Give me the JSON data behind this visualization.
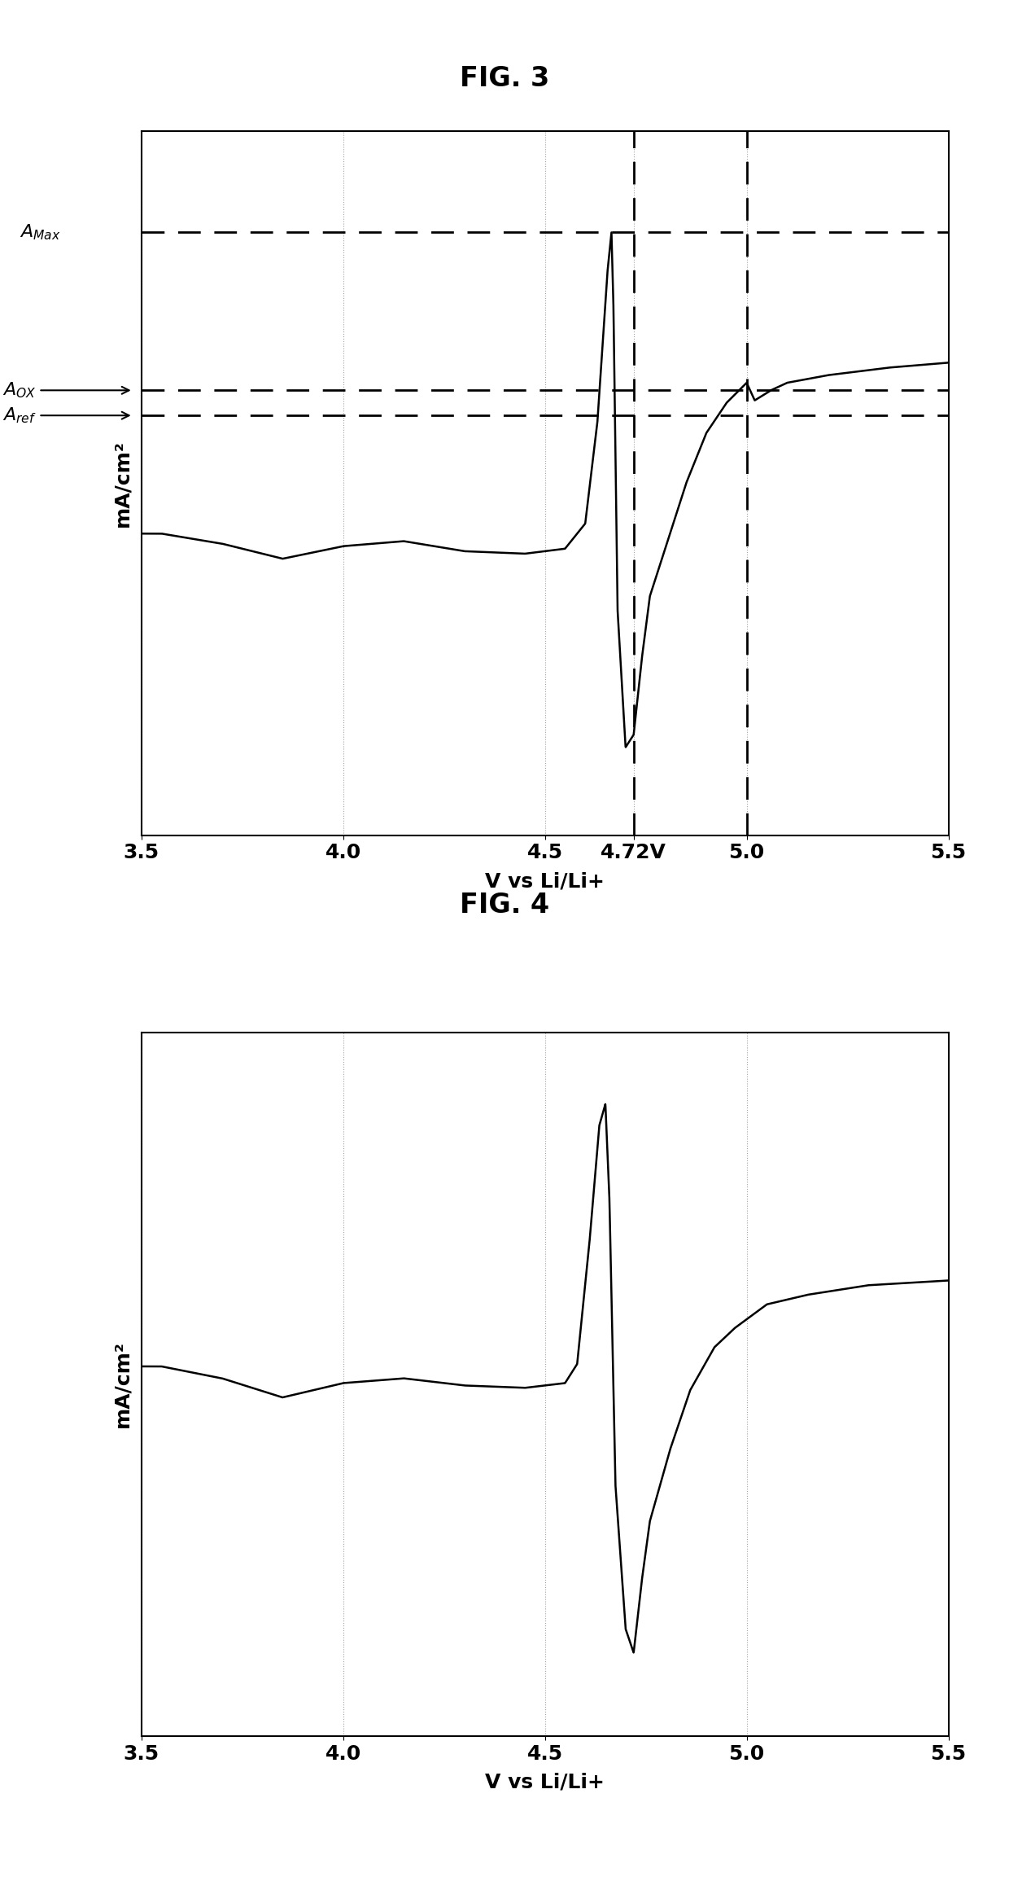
{
  "fig3_title": "FIG. 3",
  "fig4_title": "FIG. 4",
  "xlabel": "V vs Li/Li+",
  "ylabel": "mA/cm²",
  "xlim": [
    3.5,
    5.5
  ],
  "fig3_xticks": [
    3.5,
    4.0,
    4.5,
    4.72,
    5.0,
    5.5
  ],
  "fig3_xtick_labels": [
    "3.5",
    "4.0",
    "4.5",
    "4.72V",
    "5.0",
    "5.5"
  ],
  "fig4_xticks": [
    3.5,
    4.0,
    4.5,
    5.0,
    5.5
  ],
  "fig4_xtick_labels": [
    "3.5",
    "4.0",
    "4.5",
    "5.0",
    "5.5"
  ],
  "vline1": 4.72,
  "vline2": 5.0,
  "background_color": "#ffffff",
  "line_color": "#000000",
  "dashed_color": "#000000",
  "title_fontsize": 24,
  "label_fontsize": 18,
  "tick_fontsize": 18,
  "annot_fontsize": 16
}
